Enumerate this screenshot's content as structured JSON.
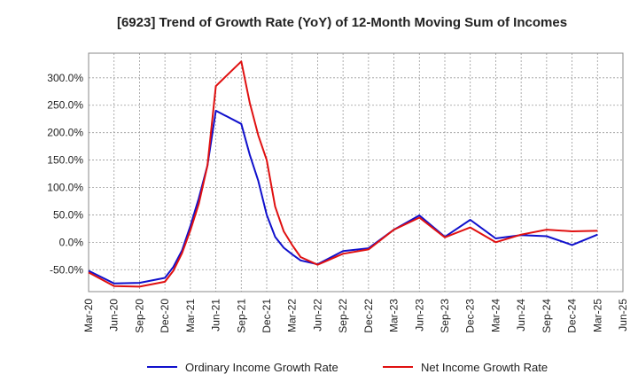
{
  "chart_data": {
    "type": "line",
    "title": "[6923]  Trend of Growth Rate (YoY) of 12-Month Moving Sum of Incomes",
    "xlabel": "",
    "ylabel": "",
    "x": [
      "Mar-20",
      "Jun-20",
      "Sep-20",
      "Dec-20",
      "Mar-21",
      "Jun-21",
      "Sep-21",
      "Dec-21",
      "Mar-22",
      "Jun-22",
      "Sep-22",
      "Dec-22",
      "Mar-23",
      "Jun-23",
      "Sep-23",
      "Dec-23",
      "Mar-24",
      "Jun-24",
      "Sep-24",
      "Dec-24",
      "Mar-25",
      "Jun-25"
    ],
    "x_tick_labels": [
      "Mar-20",
      "Jun-20",
      "Sep-20",
      "Dec-20",
      "Mar-21",
      "Jun-21",
      "Sep-21",
      "Dec-21",
      "Mar-22",
      "Jun-22",
      "Sep-22",
      "Dec-22",
      "Mar-23",
      "Jun-23",
      "Sep-23",
      "Dec-23",
      "Mar-24",
      "Jun-24",
      "Sep-24",
      "Dec-24",
      "Mar-25",
      "Jun-25"
    ],
    "y_tick_labels": [
      "-50.0%",
      "0.0%",
      "50.0%",
      "100.0%",
      "150.0%",
      "200.0%",
      "250.0%",
      "300.0%"
    ],
    "y_ticks": [
      -50,
      0,
      50,
      100,
      150,
      200,
      250,
      300
    ],
    "ylim": [
      -90,
      345
    ],
    "grid": true,
    "legend_position": "bottom",
    "series": [
      {
        "name": "Ordinary Income Growth Rate",
        "color": "#1010cc",
        "points": [
          [
            0,
            -52
          ],
          [
            1,
            -75
          ],
          [
            2,
            -74
          ],
          [
            3,
            -65
          ],
          [
            3.33,
            -45
          ],
          [
            3.67,
            -15
          ],
          [
            4,
            30
          ],
          [
            4.33,
            80
          ],
          [
            4.67,
            140
          ],
          [
            5,
            240
          ],
          [
            6,
            216
          ],
          [
            6.33,
            160
          ],
          [
            6.67,
            112
          ],
          [
            7,
            50
          ],
          [
            7.33,
            10
          ],
          [
            7.67,
            -10
          ],
          [
            8,
            -22
          ],
          [
            8.33,
            -33
          ],
          [
            9,
            -40
          ],
          [
            10,
            -16
          ],
          [
            11,
            -11
          ],
          [
            12,
            23
          ],
          [
            13,
            49
          ],
          [
            14,
            10
          ],
          [
            15,
            41
          ],
          [
            16,
            7
          ],
          [
            17,
            13
          ],
          [
            18,
            11
          ],
          [
            19,
            -5
          ],
          [
            20,
            14
          ]
        ]
      },
      {
        "name": "Net Income Growth Rate",
        "color": "#e01010",
        "points": [
          [
            0,
            -55
          ],
          [
            1,
            -80
          ],
          [
            2,
            -81
          ],
          [
            3,
            -72
          ],
          [
            3.33,
            -52
          ],
          [
            3.67,
            -20
          ],
          [
            4,
            22
          ],
          [
            4.33,
            70
          ],
          [
            4.67,
            140
          ],
          [
            5,
            285
          ],
          [
            6,
            330
          ],
          [
            6.33,
            255
          ],
          [
            6.67,
            195
          ],
          [
            7,
            150
          ],
          [
            7.33,
            65
          ],
          [
            7.67,
            20
          ],
          [
            8,
            -5
          ],
          [
            8.33,
            -27
          ],
          [
            9,
            -41
          ],
          [
            10,
            -21
          ],
          [
            11,
            -13
          ],
          [
            12,
            23
          ],
          [
            13,
            45
          ],
          [
            14,
            9
          ],
          [
            15,
            27
          ],
          [
            16,
            0
          ],
          [
            17,
            14
          ],
          [
            18,
            23
          ],
          [
            19,
            20
          ],
          [
            20,
            21
          ]
        ]
      }
    ]
  }
}
